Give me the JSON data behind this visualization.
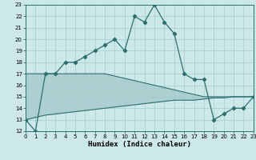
{
  "xlabel": "Humidex (Indice chaleur)",
  "x_data": [
    0,
    1,
    2,
    3,
    4,
    5,
    6,
    7,
    8,
    9,
    10,
    11,
    12,
    13,
    14,
    15,
    16,
    17,
    18,
    19,
    20,
    21,
    22,
    23
  ],
  "y_main": [
    13,
    12,
    17,
    17,
    18,
    18,
    18.5,
    19,
    19.5,
    20,
    19,
    22,
    21.5,
    23,
    21.5,
    20.5,
    17,
    16.5,
    16.5,
    13,
    13.5,
    14,
    14,
    15
  ],
  "y_upper": [
    17,
    17,
    17,
    17,
    17,
    17,
    17,
    17,
    17,
    16.8,
    16.6,
    16.4,
    16.2,
    16.0,
    15.8,
    15.6,
    15.4,
    15.2,
    15.0,
    15.0,
    15.0,
    15.0,
    15.0,
    15.0
  ],
  "y_lower": [
    13,
    13.2,
    13.4,
    13.5,
    13.6,
    13.7,
    13.8,
    13.9,
    14.0,
    14.1,
    14.2,
    14.3,
    14.4,
    14.5,
    14.6,
    14.7,
    14.7,
    14.7,
    14.8,
    14.9,
    14.9,
    15.0,
    15.0,
    15.0
  ],
  "line_color": "#2d6e6e",
  "bg_color": "#cde8e8",
  "grid_color": "#9fcece",
  "ylim": [
    12,
    23
  ],
  "xlim": [
    0,
    23
  ],
  "yticks": [
    12,
    13,
    14,
    15,
    16,
    17,
    18,
    19,
    20,
    21,
    22,
    23
  ],
  "xticks": [
    0,
    1,
    2,
    3,
    4,
    5,
    6,
    7,
    8,
    9,
    10,
    11,
    12,
    13,
    14,
    15,
    16,
    17,
    18,
    19,
    20,
    21,
    22,
    23
  ]
}
